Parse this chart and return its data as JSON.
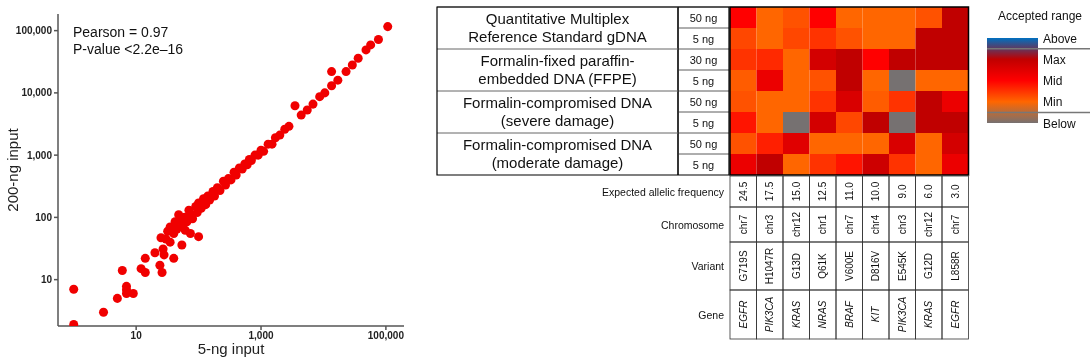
{
  "chart_data": [
    {
      "type": "scatter",
      "xlabel": "5-ng input",
      "ylabel": "200-ng input",
      "log": "xy",
      "marker": "circle",
      "color": "#f00000",
      "annotations": [
        "Pearson = 0.97",
        "P-value <2.2e–16"
      ],
      "xlim": [
        0.56,
        195000
      ],
      "ylim": [
        1.8,
        185000
      ],
      "xticks": [
        10,
        {
          "value": 1000,
          "label": "1,000"
        },
        {
          "value": 100000,
          "label": "100,000"
        }
      ],
      "yticks": [
        10,
        100,
        {
          "value": 1000,
          "label": "1,000"
        },
        {
          "value": 10000,
          "label": "10,000"
        },
        {
          "value": 100000,
          "label": "100,000"
        }
      ],
      "x": [
        1,
        1,
        3,
        5,
        6,
        7,
        7,
        7,
        9,
        12,
        14,
        14,
        20,
        24,
        25,
        26,
        27,
        28,
        35,
        40,
        48,
        54,
        61,
        74,
        100,
        30,
        32,
        35,
        40,
        42,
        45,
        50,
        55,
        60,
        65,
        70,
        75,
        80,
        90,
        95,
        100,
        110,
        120,
        130,
        140,
        150,
        170,
        180,
        200,
        220,
        250,
        270,
        300,
        330,
        370,
        400,
        450,
        500,
        550,
        600,
        650,
        700,
        800,
        900,
        1000,
        1100,
        1300,
        1500,
        1700,
        2000,
        2400,
        2800,
        3500,
        4400,
        5500,
        6800,
        8700,
        10500,
        13500,
        13500,
        17000,
        23000,
        29000,
        36000,
        48000,
        57000,
        76000,
        107000
      ],
      "values": [
        1.9,
        7,
        3,
        5,
        14,
        7.8,
        6.9,
        6,
        6,
        15,
        22,
        13,
        27,
        17,
        47,
        13,
        31,
        25,
        40,
        22,
        110,
        36,
        62,
        55,
        49,
        45,
        60,
        70,
        55,
        85,
        65,
        90,
        75,
        100,
        85,
        130,
        110,
        95,
        150,
        120,
        170,
        140,
        200,
        160,
        220,
        190,
        260,
        220,
        300,
        270,
        380,
        330,
        420,
        400,
        530,
        480,
        620,
        600,
        720,
        700,
        850,
        820,
        1000,
        1000,
        1200,
        1150,
        1500,
        1500,
        1900,
        2100,
        2600,
        2900,
        6200,
        4400,
        5300,
        6600,
        8700,
        10000,
        22000,
        13000,
        16000,
        22000,
        28000,
        36000,
        49000,
        59000,
        72000,
        116000
      ]
    },
    {
      "type": "heatmap",
      "categories": [
        null,
        null,
        null,
        null,
        null,
        null,
        null,
        null,
        null
      ],
      "y_categories": [
        "Quantitative Multiplex Reference Standard gDNA",
        null,
        "Formalin-fixed paraffin-embedded DNA (FFPE)",
        null,
        "Formalin-compromised DNA (severe damage)",
        null,
        "Formalin-compromised DNA (moderate damage)",
        null
      ],
      "y2_categories": [
        "50 ng",
        "5 ng",
        "30 ng",
        "5 ng",
        "50 ng",
        "5 ng",
        "50 ng",
        "5 ng"
      ],
      "cells": [
        [
          3,
          2,
          2.2,
          3,
          2,
          2,
          2,
          2.2,
          4
        ],
        [
          2.3,
          2,
          2.3,
          2.5,
          2.2,
          2,
          2,
          4,
          4
        ],
        [
          2.5,
          2.6,
          2,
          3.7,
          4,
          3,
          4,
          4,
          4
        ],
        [
          2.1,
          3.3,
          2,
          2.2,
          4,
          2,
          1,
          2,
          2
        ],
        [
          2.2,
          2,
          2,
          2.5,
          3.6,
          2.1,
          2.5,
          4,
          3.3
        ],
        [
          2.8,
          2,
          1,
          3.7,
          2.3,
          4,
          1,
          4,
          4
        ],
        [
          2.2,
          2.7,
          3.5,
          2,
          2,
          2,
          3.6,
          2,
          3.7
        ],
        [
          3.3,
          4,
          2,
          2.5,
          2.8,
          3.8,
          2.5,
          2,
          3.3
        ]
      ],
      "clabel": "Accepted range",
      "clim": [
        1,
        5
      ],
      "cticks": [
        {
          "value": 5,
          "label": "Above"
        },
        {
          "value": 4,
          "label": "Max"
        },
        {
          "value": 3,
          "label": "Mid"
        },
        {
          "value": 2,
          "label": "Min"
        },
        {
          "value": 1,
          "label": "Below"
        }
      ],
      "colors": [
        "#0070c0",
        "#c00000",
        "#ff0000",
        "#ff6600",
        "#767171"
      ]
    },
    {
      "type": "other",
      "y_categories": [
        "Expected allelic frequency",
        "Chromosome",
        "Variant",
        "Gene"
      ],
      "cell_labels": [
        [
          "24.5",
          "17.5",
          "15.0",
          "12.5",
          "11.0",
          "10.0",
          "9.0",
          "6.0",
          "3.0"
        ],
        [
          "chr7",
          "chr3",
          "chr12",
          "chr1",
          "chr7",
          "chr4",
          "chr3",
          "chr12",
          "chr7"
        ],
        [
          "G719S",
          "H1047R",
          "G13D",
          "Q61K",
          "V600E",
          "D816V",
          "E545K",
          "G12D",
          "L858R"
        ],
        [
          "EGFR",
          "PIK3CA",
          "KRAS",
          "NRAS",
          "BRAF",
          "KIT",
          "PIK3CA",
          "KRAS",
          "EGFR"
        ]
      ]
    }
  ]
}
